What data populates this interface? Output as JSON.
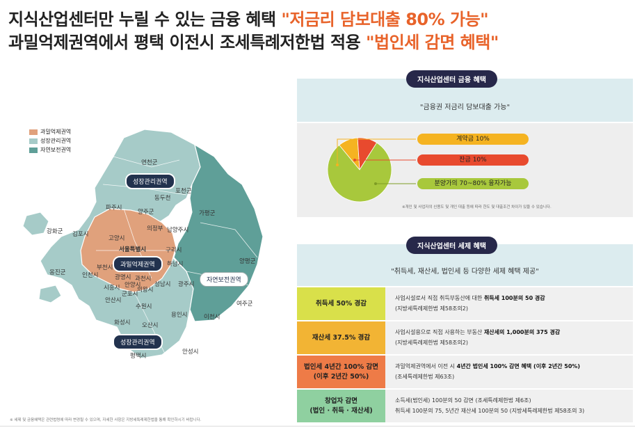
{
  "headline": {
    "line1_prefix": "지식산업센터만 누릴 수 있는 금융 혜택 ",
    "line1_highlight": "\"저금리 담보대출 80% 가능\"",
    "line2_prefix": "과밀억제권역에서 평택 이전시 조세특례저한법 적용 ",
    "line2_highlight": "\"법인세 감면 혜택\""
  },
  "colors": {
    "overcrowded": "#e0a17c",
    "growth": "#9fc6c3",
    "conservation": "#5f9f98",
    "highlight": "#e8632a"
  },
  "legend": [
    "과밀억제권역",
    "성장관리권역",
    "자연보전권역"
  ],
  "map": {
    "region_pills": [
      "성장관리권역",
      "과밀억제권역",
      "자연보전권역",
      "성장관리권역"
    ],
    "cities": [
      "연천군",
      "포천군",
      "동두천",
      "파주시",
      "양주군",
      "가평군",
      "강화군",
      "김포시",
      "고양시",
      "의정부",
      "남양주시",
      "서울특별시",
      "구리시",
      "양평군",
      "인천시",
      "부천시",
      "광명시",
      "과천시",
      "하남시",
      "성남시",
      "광주시",
      "옹진군",
      "안산시",
      "시흥시",
      "안양시",
      "의왕시",
      "군포시",
      "수원시",
      "용인시",
      "이천시",
      "여주군",
      "화성시",
      "오산시",
      "평택시",
      "안성시",
      "연천군2"
    ]
  },
  "left_footnote": "※ 세제 및 금융혜택은 관련법령에 따라 변경될 수 있으며, 자세한 사항은 지방세특례제한법을 통해 확인하시기 바랍니다.",
  "finance": {
    "tag": "지식산업센터 금융 혜택",
    "quote": "\"금융권 저금리 담보대출 가능\"",
    "chips": [
      "계약금 10%",
      "잔금 10%",
      "분양가의 70~80% 융자가능"
    ],
    "note": "※개인 및 사업자의 신용도 및 개인 대출 등에 따라 한도 및 대출조건 차이가 있을 수 있습니다."
  },
  "chart_data": {
    "type": "pie",
    "categories": [
      "계약금",
      "잔금",
      "분양가의 70~80% 융자가능"
    ],
    "values": [
      10,
      10,
      80
    ],
    "colors": [
      "#f5b321",
      "#e84a2e",
      "#a8c83c"
    ]
  },
  "tax": {
    "tag": "지식산업센터 세제 혜택",
    "quote": "\"취득세, 재산세, 법인세 등 다양한 세제 혜택 제공\"",
    "rows": [
      {
        "label": "취득세 50% 경감",
        "line1_pre": "사업시설로서 직접 취득부동산에 대한 ",
        "line1_bold": "취득세 100분의 50 경감",
        "line2": "(지방세특례제한법 제58조의2)",
        "color": "#d9e04a"
      },
      {
        "label": "재산세 37.5% 경감",
        "line1_pre": "사업시설용으로 직접 사용하는 부동산 ",
        "line1_bold": "재산세의 1,000분의 375 경감",
        "line2": "(지방세특례제한법 제58조의2)",
        "color": "#f2b434"
      },
      {
        "label": "법인세 4년간 100% 감면",
        "label2": "(이후 2년간 50%)",
        "line1_pre": "과밀억제권역에서 이전 시 ",
        "line1_bold": "4년간 법인세 100% 감면 혜택 (이후 2년간 50%)",
        "line2": "(조세특례제한법 제63조)",
        "color": "#ee7b47"
      },
      {
        "label": "창업자 감면",
        "label2": "(법인 · 취득 · 재산세)",
        "line1_pre": "소득세(법인세) 100분의 50 감면 (조세특례제한법 제6조)",
        "line1_bold": "",
        "line2": "취득세 100분의 75, 5년간 재산세 100분의 50 (지방세특례제한법 제58조의 3)",
        "color": "#8fd0a0"
      }
    ]
  }
}
